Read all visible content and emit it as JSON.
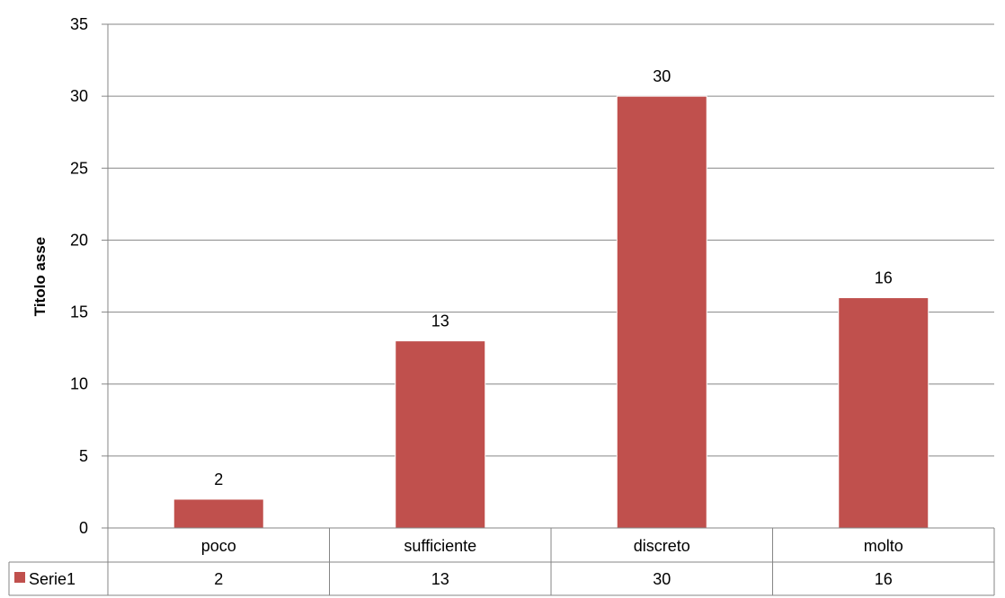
{
  "chart_data": {
    "type": "bar",
    "categories": [
      "poco",
      "sufficiente",
      "discreto",
      "molto"
    ],
    "series": [
      {
        "name": "Serie1",
        "values": [
          2,
          13,
          30,
          16
        ]
      }
    ],
    "title": "",
    "xlabel": "",
    "ylabel": "Titolo asse",
    "ylim": [
      0,
      35
    ],
    "yticks": [
      0,
      5,
      10,
      15,
      20,
      25,
      30,
      35
    ],
    "grid": true,
    "legend": "data-table-left",
    "data_table": true,
    "data_labels": true,
    "bar_color": "#c0504d",
    "grid_color": "#868686"
  }
}
